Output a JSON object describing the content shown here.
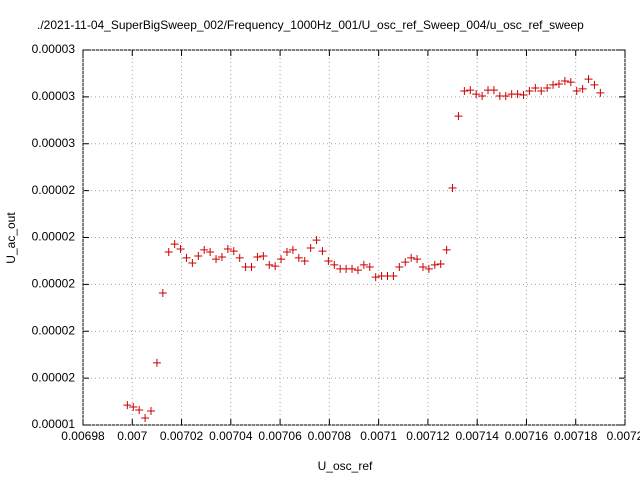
{
  "chart_data": {
    "type": "scatter",
    "title": "./2021-11-04_SuperBigSweep_002/Frequency_1000Hz_001/U_osc_ref_Sweep_004/u_osc_ref_sweep",
    "x_label": "U_osc_ref",
    "y_label": "U_ac_out",
    "color": "#cc0000",
    "grid": true,
    "xlim": [
      0.00698,
      0.0072
    ],
    "xticks": [
      0.00698,
      0.007,
      0.00702,
      0.00704,
      0.00706,
      0.00708,
      0.0071,
      0.00712,
      0.00714,
      0.00716,
      0.00718,
      0.0072
    ],
    "ylim": [
      1.4e-05,
      3e-05
    ],
    "yticks": [
      {
        "value": 1.4e-05,
        "label": "0.00001"
      },
      {
        "value": 1.6e-05,
        "label": "0.00002"
      },
      {
        "value": 1.8e-05,
        "label": "0.00002"
      },
      {
        "value": 2e-05,
        "label": "0.00002"
      },
      {
        "value": 2.2e-05,
        "label": "0.00002"
      },
      {
        "value": 2.4e-05,
        "label": "0.00002"
      },
      {
        "value": 2.6e-05,
        "label": "0.00003"
      },
      {
        "value": 2.8e-05,
        "label": "0.00003"
      },
      {
        "value": 3e-05,
        "label": "0.00003"
      }
    ],
    "x": [
      0.006998,
      0.0070004,
      0.0070028,
      0.0070052,
      0.0070076,
      0.00701,
      0.0070124,
      0.0070148,
      0.0070172,
      0.0070196,
      0.007022,
      0.0070244,
      0.0070268,
      0.0070292,
      0.0070316,
      0.007034,
      0.0070364,
      0.0070388,
      0.0070412,
      0.0070436,
      0.007046,
      0.0070484,
      0.0070508,
      0.0070532,
      0.0070556,
      0.007058,
      0.0070604,
      0.0070628,
      0.0070652,
      0.0070676,
      0.00707,
      0.0070724,
      0.0070748,
      0.0070772,
      0.0070796,
      0.007082,
      0.0070844,
      0.0070868,
      0.0070892,
      0.0070916,
      0.007094,
      0.0070964,
      0.0070988,
      0.0071012,
      0.0071036,
      0.007106,
      0.0071084,
      0.0071108,
      0.0071132,
      0.0071156,
      0.007118,
      0.0071204,
      0.0071228,
      0.0071252,
      0.0071276,
      0.00713,
      0.0071324,
      0.0071348,
      0.0071372,
      0.0071396,
      0.007142,
      0.0071444,
      0.0071468,
      0.0071492,
      0.0071516,
      0.007154,
      0.0071564,
      0.0071588,
      0.0071612,
      0.0071636,
      0.007166,
      0.0071684,
      0.0071708,
      0.0071732,
      0.0071756,
      0.007178,
      0.0071804,
      0.0071828,
      0.0071852,
      0.0071876,
      0.00719
    ],
    "values": [
      1.485e-05,
      1.477e-05,
      1.464e-05,
      1.43e-05,
      1.46e-05,
      1.665e-05,
      1.963e-05,
      2.138e-05,
      2.172e-05,
      2.151e-05,
      2.113e-05,
      2.091e-05,
      2.121e-05,
      2.147e-05,
      2.138e-05,
      2.108e-05,
      2.117e-05,
      2.151e-05,
      2.142e-05,
      2.113e-05,
      2.074e-05,
      2.074e-05,
      2.117e-05,
      2.121e-05,
      2.083e-05,
      2.078e-05,
      2.108e-05,
      2.138e-05,
      2.147e-05,
      2.113e-05,
      2.1e-05,
      2.155e-05,
      2.189e-05,
      2.142e-05,
      2.1e-05,
      2.083e-05,
      2.066e-05,
      2.066e-05,
      2.066e-05,
      2.061e-05,
      2.083e-05,
      2.074e-05,
      2.031e-05,
      2.036e-05,
      2.036e-05,
      2.036e-05,
      2.074e-05,
      2.095e-05,
      2.113e-05,
      2.108e-05,
      2.074e-05,
      2.066e-05,
      2.083e-05,
      2.087e-05,
      2.147e-05,
      2.411e-05,
      2.718e-05,
      2.825e-05,
      2.829e-05,
      2.812e-05,
      2.804e-05,
      2.829e-05,
      2.829e-05,
      2.804e-05,
      2.804e-05,
      2.812e-05,
      2.812e-05,
      2.808e-05,
      2.825e-05,
      2.838e-05,
      2.825e-05,
      2.838e-05,
      2.851e-05,
      2.855e-05,
      2.868e-05,
      2.863e-05,
      2.825e-05,
      2.834e-05,
      2.876e-05,
      2.851e-05,
      2.817e-05
    ]
  }
}
